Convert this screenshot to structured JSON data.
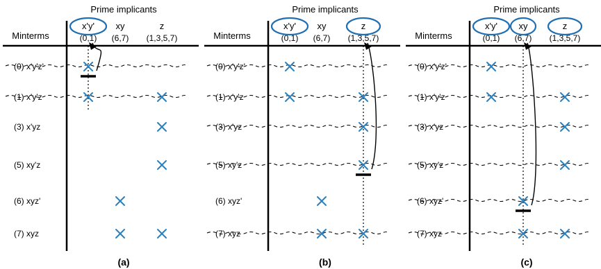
{
  "header": {
    "title": "Prime implicants",
    "minterms_label": "Minterms"
  },
  "implicants": [
    {
      "term": "x'y'",
      "cover": "(0,1)"
    },
    {
      "term": "xy",
      "cover": "(6,7)"
    },
    {
      "term": "z",
      "cover": "(1,3,5,7)"
    }
  ],
  "minterms": [
    {
      "label": "(0) x'y'z'",
      "covered_by": [
        0
      ]
    },
    {
      "label": "(1) x'y'z",
      "covered_by": [
        0,
        2
      ]
    },
    {
      "label": "(3) x'yz",
      "covered_by": [
        2
      ]
    },
    {
      "label": "(5) xy'z",
      "covered_by": [
        2
      ]
    },
    {
      "label": "(6) xyz'",
      "covered_by": [
        1
      ]
    },
    {
      "label": "(7) xyz",
      "covered_by": [
        1,
        2
      ]
    }
  ],
  "panels": [
    {
      "caption": "(a)",
      "selected": [
        0
      ],
      "arrow_from_minterm": 0,
      "arrow_to_implicant": 0,
      "struck_rows": [
        0,
        1
      ],
      "dotted_column": 0
    },
    {
      "caption": "(b)",
      "selected": [
        0,
        2
      ],
      "arrow_from_minterm": 3,
      "arrow_to_implicant": 2,
      "struck_rows": [
        0,
        1,
        2,
        3,
        5
      ],
      "dotted_column": 2
    },
    {
      "caption": "(c)",
      "selected": [
        0,
        1,
        2
      ],
      "arrow_from_minterm": 4,
      "arrow_to_implicant": 1,
      "struck_rows": [
        0,
        1,
        2,
        3,
        4,
        5
      ],
      "dotted_column": 1
    }
  ],
  "colors": {
    "mark": "#2a80c0",
    "selection": "#1f6fb2"
  }
}
